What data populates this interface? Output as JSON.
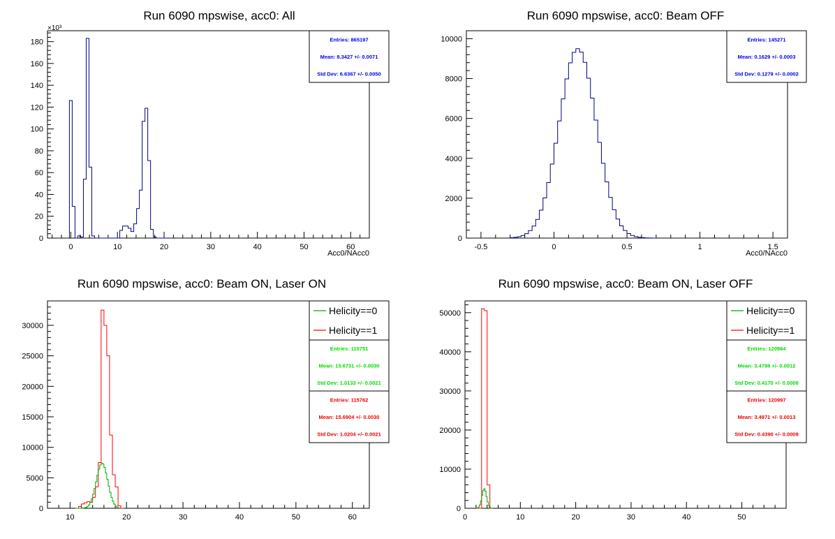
{
  "chart_data": [
    {
      "type": "histogram",
      "title": "Run 6090 mpswise, acc0: All",
      "xlabel": "Acc0/NAcc0",
      "ylabel": "",
      "y_multiplier_label": "×10³",
      "xlim": [
        -5,
        64
      ],
      "ylim": [
        0,
        190
      ],
      "xticks": [
        0,
        10,
        20,
        30,
        40,
        50,
        60
      ],
      "yticks": [
        0,
        20,
        40,
        60,
        80,
        100,
        120,
        140,
        160,
        180
      ],
      "grid": false,
      "series": [
        {
          "color": "#000080",
          "bin_width": 0.6,
          "x_start": -0.3,
          "counts": [
            126,
            29,
            0,
            2,
            1,
            54,
            183,
            65,
            2,
            0,
            0,
            0,
            0,
            0,
            0,
            0,
            0,
            0,
            7,
            11,
            11,
            9,
            6,
            13,
            27,
            44,
            107,
            119,
            71,
            8,
            1,
            0,
            0,
            0,
            0
          ]
        }
      ],
      "stats": [
        {
          "lines": [
            "Entries: 865197",
            "Mean: 8.3427 +/- 0.0071",
            "Std Dev: 6.6367 +/- 0.0050"
          ],
          "color": "#0000ee"
        }
      ],
      "legend": []
    },
    {
      "type": "histogram",
      "title": "Run 6090 mpswise, acc0: Beam OFF",
      "xlabel": "Acc0/NAcc0",
      "ylabel": "",
      "xlim": [
        -0.6,
        1.6
      ],
      "ylim": [
        0,
        10400
      ],
      "xticks": [
        -0.5,
        0,
        0.5,
        1,
        1.5
      ],
      "yticks": [
        0,
        2000,
        4000,
        6000,
        8000,
        10000
      ],
      "grid": false,
      "series": [
        {
          "color": "#000080",
          "gauss": {
            "mean": 0.163,
            "sigma": 0.128,
            "peak": 9500,
            "bin_width": 0.025,
            "x_from": -0.3,
            "x_to": 0.7
          }
        }
      ],
      "stats": [
        {
          "lines": [
            "Entries: 145271",
            "Mean: 0.1629 +/- 0.0003",
            "Std Dev: 0.1279 +/- 0.0002"
          ],
          "color": "#0000ee"
        }
      ],
      "legend": []
    },
    {
      "type": "histogram",
      "title": "Run 6090 mpswise, acc0: Beam ON, Laser ON",
      "xlabel": "",
      "ylabel": "",
      "xlim": [
        6,
        63
      ],
      "ylim": [
        0,
        34000
      ],
      "xticks": [
        10,
        20,
        30,
        40,
        50,
        60
      ],
      "yticks": [
        0,
        5000,
        10000,
        15000,
        20000,
        25000,
        30000
      ],
      "grid": false,
      "series": [
        {
          "name": "Helicity==1",
          "color": "#ff0000",
          "bin_width": 0.5,
          "x_start": 11.5,
          "counts": [
            300,
            700,
            900,
            1100,
            1000,
            1800,
            3500,
            7500,
            32500,
            30000,
            25000,
            12000,
            5500,
            3500,
            400,
            0
          ]
        },
        {
          "name": "Helicity==0",
          "color": "#00aa00",
          "gauss": {
            "mean": 15.67,
            "sigma": 1.01,
            "peak": 7400,
            "bin_width": 0.25,
            "x_from": 11,
            "x_to": 18.5
          }
        }
      ],
      "stats": [
        {
          "lines": [
            "Entries: 115751",
            "Mean: 15.6731 +/- 0.0030",
            "Std Dev: 1.0133 +/- 0.0021"
          ],
          "color": "#00dd00"
        },
        {
          "lines": [
            "Entries: 115762",
            "Mean: 15.6904 +/- 0.0030",
            "Std Dev: 1.0204 +/- 0.0021"
          ],
          "color": "#ee0000"
        }
      ],
      "legend": [
        {
          "label": "Helicity==0",
          "color": "#00aa00"
        },
        {
          "label": "Helicity==1",
          "color": "#ff0000"
        }
      ]
    },
    {
      "type": "histogram",
      "title": "Run 6090 mpswise, acc0: Beam ON, Laser OFF",
      "xlabel": "",
      "ylabel": "",
      "xlim": [
        0,
        58
      ],
      "ylim": [
        0,
        53000
      ],
      "xticks": [
        0,
        10,
        20,
        30,
        40,
        50
      ],
      "yticks": [
        0,
        10000,
        20000,
        30000,
        40000,
        50000
      ],
      "grid": false,
      "series": [
        {
          "name": "Helicity==1",
          "color": "#ff0000",
          "bin_width": 0.5,
          "x_start": 2.0,
          "counts": [
            0,
            0,
            51000,
            50500,
            6000,
            0
          ]
        },
        {
          "name": "Helicity==0",
          "color": "#00aa00",
          "gauss": {
            "mean": 3.48,
            "sigma": 0.417,
            "peak": 5000,
            "bin_width": 0.2,
            "x_from": 2.2,
            "x_to": 4.8
          }
        }
      ],
      "stats": [
        {
          "lines": [
            "Entries: 120984",
            "Mean: 3.4799 +/- 0.0012",
            "Std Dev: 0.4170 +/- 0.0008"
          ],
          "color": "#00dd00"
        },
        {
          "lines": [
            "Entries: 120997",
            "Mean: 3.4971 +/- 0.0013",
            "Std Dev: 0.4390 +/- 0.0009"
          ],
          "color": "#ee0000"
        }
      ],
      "legend": [
        {
          "label": "Helicity==0",
          "color": "#00aa00"
        },
        {
          "label": "Helicity==1",
          "color": "#ff0000"
        }
      ]
    }
  ]
}
